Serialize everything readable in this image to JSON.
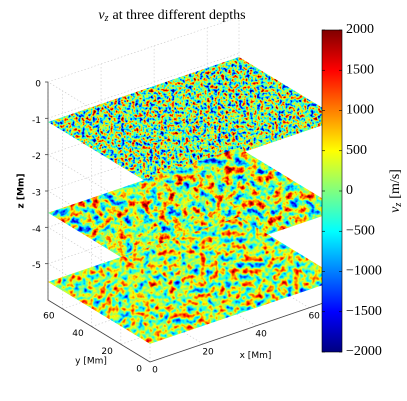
{
  "chart_data": {
    "type": "slices3d",
    "title_symbol": "v",
    "title_subscript": "z",
    "title_text": "at three different depths",
    "xlabel": "x [Mm]",
    "ylabel": "y [Mm]",
    "zlabel": "z [Mm]",
    "xlim": [
      0,
      72
    ],
    "ylim": [
      0,
      70
    ],
    "zlim": [
      -6,
      0
    ],
    "xticks": [
      0,
      20,
      40,
      60
    ],
    "yticks": [
      0,
      20,
      40,
      60
    ],
    "zticks": [
      0,
      -1,
      -2,
      -3,
      -4,
      -5
    ],
    "slice_depths": [
      -1.1,
      -3.6,
      -5.5
    ],
    "grid": true,
    "colorbar_symbol": "v",
    "colorbar_subscript": "z",
    "colorbar_unit": "[m/s]",
    "clim": [
      -2000,
      2000
    ],
    "cticks": [
      {
        "value": -2000,
        "label": "−2000"
      },
      {
        "value": -1500,
        "label": "−1500"
      },
      {
        "value": -1000,
        "label": "−1000"
      },
      {
        "value": -500,
        "label": "−500"
      },
      0,
      500,
      1000,
      1500,
      2000
    ]
  }
}
